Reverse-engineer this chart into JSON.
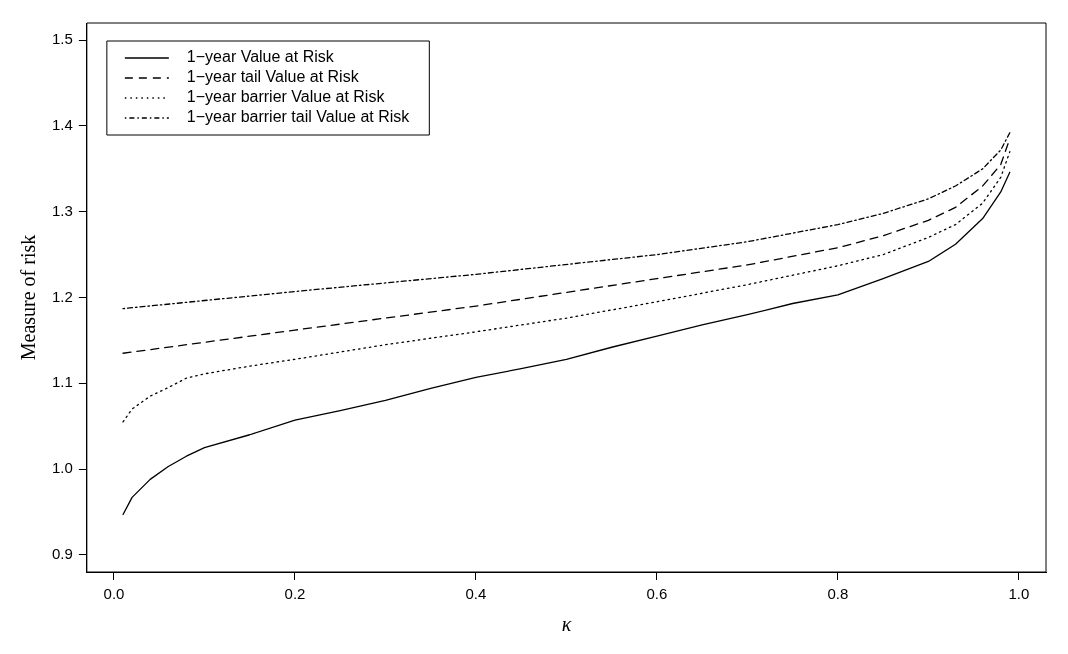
{
  "chart_data": {
    "type": "line",
    "xlabel": "κ",
    "ylabel": "Measure of risk",
    "xlim": [
      -0.03,
      1.03
    ],
    "ylim": [
      0.88,
      1.52
    ],
    "xticks": [
      {
        "value": 0,
        "label": "0.0"
      },
      0.2,
      0.4,
      0.6,
      0.8,
      {
        "value": 1,
        "label": "1.0"
      }
    ],
    "yticks": [
      0.9,
      {
        "value": 1,
        "label": "1.0"
      },
      1.1,
      1.2,
      1.3,
      1.4,
      1.5
    ],
    "grid": false,
    "legend": "top left",
    "marker": "none",
    "series": [
      {
        "name": "1−year Value at Risk",
        "color": "#000000",
        "line_style": "solid",
        "x": [
          0.01,
          0.02,
          0.04,
          0.06,
          0.08,
          0.1,
          0.15,
          0.2,
          0.25,
          0.3,
          0.35,
          0.4,
          0.45,
          0.5,
          0.55,
          0.6,
          0.65,
          0.7,
          0.75,
          0.8,
          0.85,
          0.9,
          0.93,
          0.96,
          0.98,
          0.99
        ],
        "values": [
          0.947,
          0.967,
          0.988,
          1.003,
          1.015,
          1.025,
          1.04,
          1.057,
          1.068,
          1.08,
          1.094,
          1.107,
          1.117,
          1.128,
          1.142,
          1.155,
          1.168,
          1.18,
          1.193,
          1.203,
          1.222,
          1.242,
          1.262,
          1.292,
          1.323,
          1.346
        ]
      },
      {
        "name": "1−year tail Value at Risk",
        "color": "#000000",
        "line_style": "dashed",
        "x": [
          0.01,
          0.2,
          0.4,
          0.6,
          0.7,
          0.8,
          0.85,
          0.9,
          0.93,
          0.96,
          0.98,
          0.99
        ],
        "values": [
          1.135,
          1.162,
          1.19,
          1.222,
          1.238,
          1.258,
          1.272,
          1.29,
          1.305,
          1.33,
          1.355,
          1.385
        ]
      },
      {
        "name": "1−year barrier Value at Risk",
        "color": "#000000",
        "line_style": "dotted",
        "x": [
          0.01,
          0.02,
          0.04,
          0.06,
          0.08,
          0.1,
          0.15,
          0.2,
          0.3,
          0.4,
          0.5,
          0.6,
          0.7,
          0.8,
          0.85,
          0.9,
          0.93,
          0.96,
          0.98,
          0.99
        ],
        "values": [
          1.055,
          1.07,
          1.085,
          1.095,
          1.106,
          1.111,
          1.12,
          1.128,
          1.145,
          1.16,
          1.176,
          1.195,
          1.215,
          1.237,
          1.25,
          1.27,
          1.285,
          1.31,
          1.34,
          1.37
        ]
      },
      {
        "name": "1−year barrier tail Value at Risk",
        "color": "#000000",
        "line_style": "dashdot",
        "x": [
          0.01,
          0.2,
          0.4,
          0.6,
          0.7,
          0.8,
          0.85,
          0.9,
          0.93,
          0.96,
          0.98,
          0.99
        ],
        "values": [
          1.187,
          1.207,
          1.227,
          1.25,
          1.265,
          1.285,
          1.298,
          1.315,
          1.33,
          1.35,
          1.372,
          1.392
        ]
      }
    ]
  }
}
